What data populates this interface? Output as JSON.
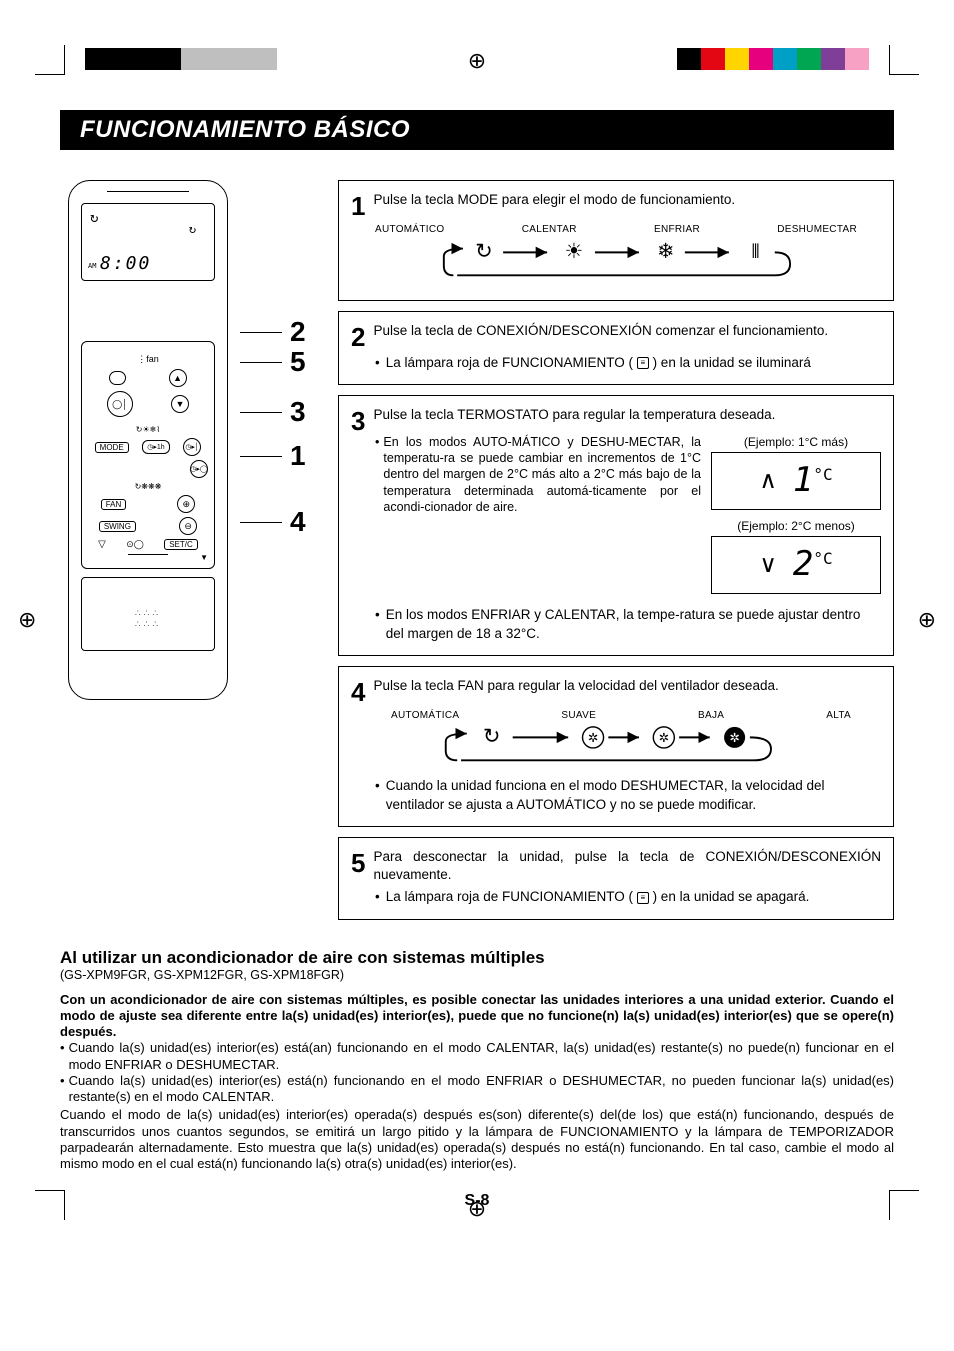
{
  "colorbars": {
    "left": [
      "#000000",
      "#000000",
      "#000000",
      "#000000",
      "#bfbfbf",
      "#bfbfbf",
      "#bfbfbf",
      "#bfbfbf"
    ],
    "right": [
      "#000000",
      "#e30613",
      "#ffd500",
      "#e6007e",
      "#00a0c6",
      "#00a651",
      "#7f3f98",
      "#f7a1c4"
    ]
  },
  "title": "FUNCIONAMIENTO BÁSICO",
  "remote": {
    "time": "8:00",
    "am": "AM",
    "mode_btn": "MODE",
    "fan_btn": "FAN",
    "swing_btn": "SWING",
    "set_btn": "SET/C"
  },
  "callouts": [
    "2",
    "5",
    "3",
    "1",
    "4"
  ],
  "step1": {
    "num": "1",
    "text": "Pulse la tecla MODE para elegir el modo de funcionamiento.",
    "modes": [
      "AUTOMÁTICO",
      "CALENTAR",
      "ENFRIAR",
      "DESHUMECTAR"
    ]
  },
  "step2": {
    "num": "2",
    "text": "Pulse la tecla de CONEXIÓN/DESCONEXIÓN comenzar el funcionamiento.",
    "bullet": "La lámpara roja de FUNCIONAMIENTO (      ) en la unidad se iluminará"
  },
  "step3": {
    "num": "3",
    "text": "Pulse la tecla TERMOSTATO para regular la temperatura deseada.",
    "left": "En los modos AUTO-MÁTICO y DESHU-MECTAR, la temperatu-ra se puede cambiar en incrementos de 1°C dentro del margen de 2°C más alto a 2°C más bajo de la temperatura determinada automá-ticamente por el acondi-cionador de aire.",
    "bullet2": "En los modos ENFRIAR y CALENTAR, la tempe-ratura se puede ajustar dentro del margen de 18 a 32°C.",
    "ex1_label": "(Ejemplo: 1°C más)",
    "ex1_val": "1",
    "ex2_label": "(Ejemplo: 2°C menos)",
    "ex2_val": "2",
    "deg_suffix": "°C"
  },
  "step4": {
    "num": "4",
    "text": "Pulse la tecla FAN para regular la velocidad del ventilador deseada.",
    "speeds": [
      "AUTOMÁTICA",
      "SUAVE",
      "BAJA",
      "ALTA"
    ],
    "bullet": "Cuando la unidad funciona en el modo DESHUMECTAR, la velocidad del ventilador se ajusta a AUTOMÁTICO y no se puede modificar."
  },
  "step5": {
    "num": "5",
    "text": "Para desconectar la unidad, pulse la tecla de CONEXIÓN/DESCONEXIÓN nuevamente.",
    "bullet": "La lámpara roja de FUNCIONAMIENTO (      ) en la unidad se apagará."
  },
  "bottom": {
    "subtitle": "Al utilizar un acondicionador de aire con sistemas múltiples",
    "models": "(GS-XPM9FGR, GS-XPM12FGR, GS-XPM18FGR)",
    "bold": "Con un acondicionador de aire con sistemas múltiples, es posible conectar las unidades interiores a una unidad exterior. Cuando el modo de ajuste sea diferente entre la(s) unidad(es) interior(es), puede que no funcione(n) la(s) unidad(es) interior(es) que se opere(n) después.",
    "b1": "Cuando la(s) unidad(es) interior(es) está(an) funcionando en el modo CALENTAR, la(s) unidad(es) restante(s) no puede(n) funcionar en el modo ENFRIAR o DESHUMECTAR.",
    "b2": "Cuando la(s) unidad(es) interior(es) está(n) funcionando en el modo ENFRIAR o DESHUMECTAR, no pueden funcionar la(s) unidad(es) restante(s) en el modo CALENTAR.",
    "para": "Cuando el modo de la(s) unidad(es) interior(es) operada(s) después es(son) diferente(s) del(de los) que está(n) funcionando, después de transcurridos unos cuantos segundos, se emitirá un largo pitido y la lámpara de FUNCIONAMIENTO y la lámpara de TEMPORIZADOR parpadearán alternadamente. Esto muestra que la(s) unidad(es) operada(s) después no está(n) funcionando. En tal caso, cambie el modo al mismo modo en el cual está(n) funcionando la(s) otra(s) unidad(es) interior(es)."
  },
  "page_number": "S-8"
}
